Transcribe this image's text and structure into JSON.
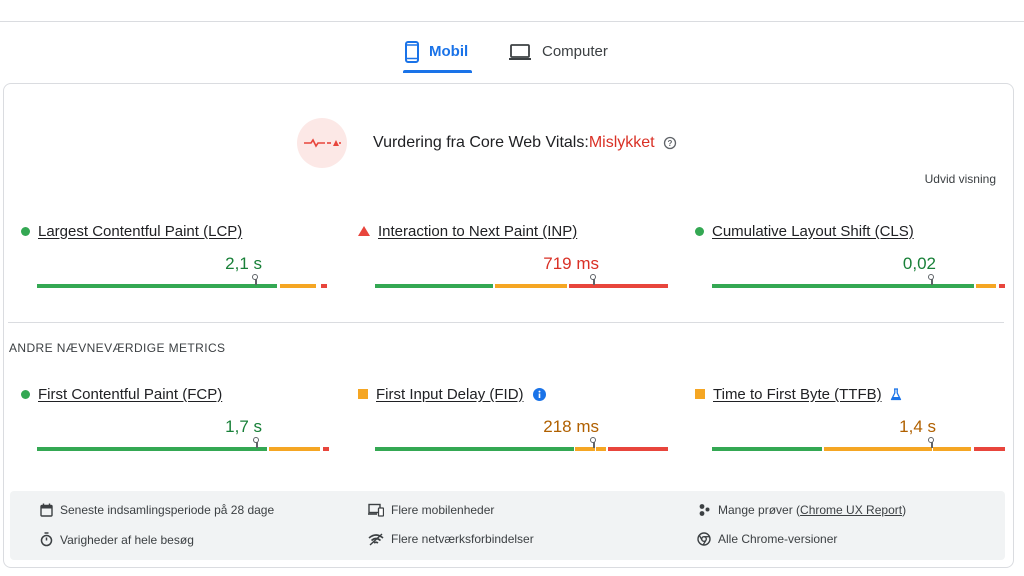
{
  "tabs": [
    {
      "label": "Mobil",
      "active": true,
      "icon": "phone-icon"
    },
    {
      "label": "Computer",
      "active": false,
      "icon": "laptop-icon"
    }
  ],
  "assessment": {
    "title": "Vurdering fra Core Web Vitals:",
    "status": "Mislykket",
    "icon": "failed-vitals-icon",
    "status_color": "#d93025"
  },
  "expand_label": "Udvid visning",
  "core_metrics": [
    {
      "name": "Largest Contentful Paint (LCP)",
      "value": "2,1 s",
      "status": "good",
      "indicator": "dot",
      "value_color": "#188038"
    },
    {
      "name": "Interaction to Next Paint (INP)",
      "value": "719 ms",
      "status": "poor",
      "indicator": "triangle",
      "value_color": "#d93025"
    },
    {
      "name": "Cumulative Layout Shift (CLS)",
      "value": "0,02",
      "status": "good",
      "indicator": "dot",
      "value_color": "#188038"
    }
  ],
  "other_section_label": "ANDRE NÆVNEVÆRDIGE METRICS",
  "other_metrics": [
    {
      "name": "First Contentful Paint (FCP)",
      "value": "1,7 s",
      "status": "good",
      "indicator": "dot",
      "value_color": "#188038",
      "extra_icon": ""
    },
    {
      "name": "First Input Delay (FID)",
      "value": "218 ms",
      "status": "needs-improvement",
      "indicator": "square",
      "value_color": "#b06000",
      "extra_icon": "info-icon"
    },
    {
      "name": "Time to First Byte (TTFB)",
      "value": "1,4 s",
      "status": "needs-improvement",
      "indicator": "square",
      "value_color": "#b06000",
      "extra_icon": "flask-icon"
    }
  ],
  "footer": {
    "items": [
      {
        "icon": "calendar-icon",
        "text": "Seneste indsamlingsperiode på 28 dage"
      },
      {
        "icon": "devices-icon",
        "text": "Flere mobilenheder"
      },
      {
        "icon": "users-icon",
        "text": "Mange prøver (",
        "link": "Chrome UX Report",
        "suffix": ")"
      },
      {
        "icon": "timer-icon",
        "text": "Varigheder af hele besøg"
      },
      {
        "icon": "wifi-icon",
        "text": "Flere netværksforbindelser"
      },
      {
        "icon": "chrome-icon",
        "text": "Alle Chrome-versioner"
      }
    ]
  },
  "colors": {
    "accent": "#1a73e8",
    "good": "#34a853",
    "average": "#f5a623",
    "poor": "#e8453c"
  }
}
